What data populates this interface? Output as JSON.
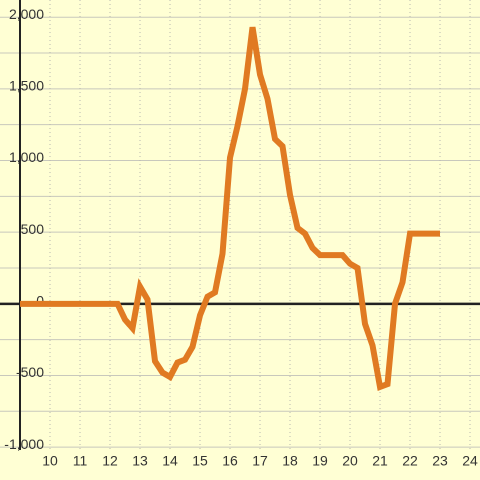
{
  "chart_data": {
    "type": "line",
    "x": [
      9,
      12.25,
      12.5,
      12.75,
      13,
      13.25,
      13.5,
      13.75,
      14,
      14.25,
      14.5,
      14.75,
      15,
      15.25,
      15.5,
      15.75,
      16,
      16.25,
      16.5,
      16.75,
      17,
      17.25,
      17.5,
      17.75,
      18,
      18.25,
      18.5,
      18.75,
      19,
      19.25,
      19.5,
      19.75,
      20,
      20.25,
      20.5,
      20.75,
      21,
      21.25,
      21.5,
      21.75,
      22,
      22.25,
      22.5,
      22.75,
      23
    ],
    "series": [
      {
        "color": "#e07a22",
        "values": [
          0,
          0,
          -110,
          -170,
          120,
          30,
          -400,
          -480,
          -510,
          -410,
          -390,
          -300,
          -80,
          50,
          80,
          350,
          1020,
          1240,
          1500,
          1930,
          1600,
          1430,
          1150,
          1100,
          760,
          530,
          490,
          390,
          340,
          340,
          340,
          340,
          280,
          250,
          -140,
          -290,
          -580,
          -560,
          0,
          150,
          490,
          490,
          490,
          490,
          490
        ]
      }
    ],
    "xlim": [
      8.333,
      24.333
    ],
    "ylim": [
      -1020,
      2120
    ],
    "xticks": [
      10,
      11,
      12,
      13,
      14,
      15,
      16,
      17,
      18,
      19,
      20,
      21,
      22,
      23,
      24
    ],
    "yticks": [
      {
        "value": -1000,
        "label": "-1,000"
      },
      -500,
      0,
      500,
      {
        "value": 1000,
        "label": "1,000"
      },
      {
        "value": 1500,
        "label": "1,500"
      },
      {
        "value": 2000,
        "label": "2,000"
      }
    ],
    "ygrid": [
      -1000,
      -750,
      -500,
      -250,
      0,
      250,
      500,
      750,
      1000,
      1250,
      1500,
      1750,
      2000
    ],
    "grid": true
  }
}
